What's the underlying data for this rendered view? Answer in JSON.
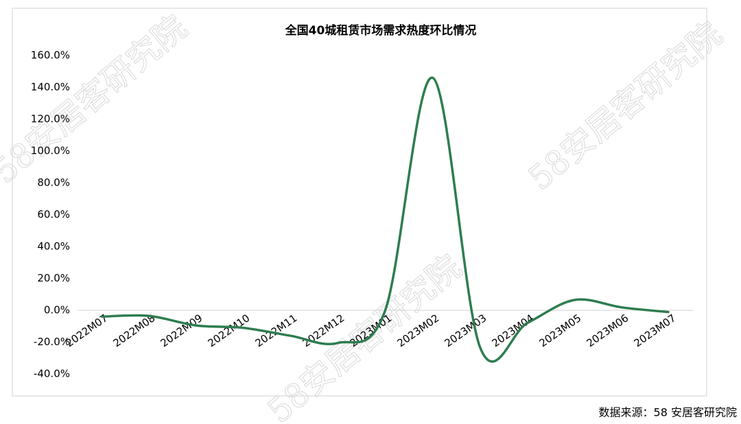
{
  "chart_data": {
    "type": "line",
    "title": "全国40城租赁市场需求热度环比情况",
    "categories": [
      "2022M07",
      "2022M08",
      "2022M09",
      "2022M10",
      "2022M11",
      "2022M12",
      "2023M01",
      "2023M02",
      "2023M03",
      "2023M04",
      "2023M05",
      "2023M06",
      "2023M07"
    ],
    "series": [
      {
        "name": "环比",
        "color": "#2e7d4f",
        "values": [
          -4.0,
          -3.5,
          -9.5,
          -11.0,
          -16.0,
          -20.5,
          0.0,
          146.0,
          -23.0,
          -8.0,
          6.5,
          1.8,
          -1.2
        ]
      }
    ],
    "ylim": [
      -40,
      160
    ],
    "yticks": [
      {
        "value": -40,
        "label": "-40.0%"
      },
      {
        "value": -20,
        "label": "-20.0%"
      },
      {
        "value": 0,
        "label": "0.0%"
      },
      {
        "value": 20,
        "label": "20.0%"
      },
      {
        "value": 40,
        "label": "40.0%"
      },
      {
        "value": 60,
        "label": "60.0%"
      },
      {
        "value": 80,
        "label": "80.0%"
      },
      {
        "value": 100,
        "label": "100.0%"
      },
      {
        "value": 120,
        "label": "120.0%"
      },
      {
        "value": 140,
        "label": "140.0%"
      },
      {
        "value": 160,
        "label": "160.0%"
      }
    ],
    "grid": false,
    "source": "数据来源：58 安居客研究院",
    "watermark": "58安居客研究院"
  }
}
